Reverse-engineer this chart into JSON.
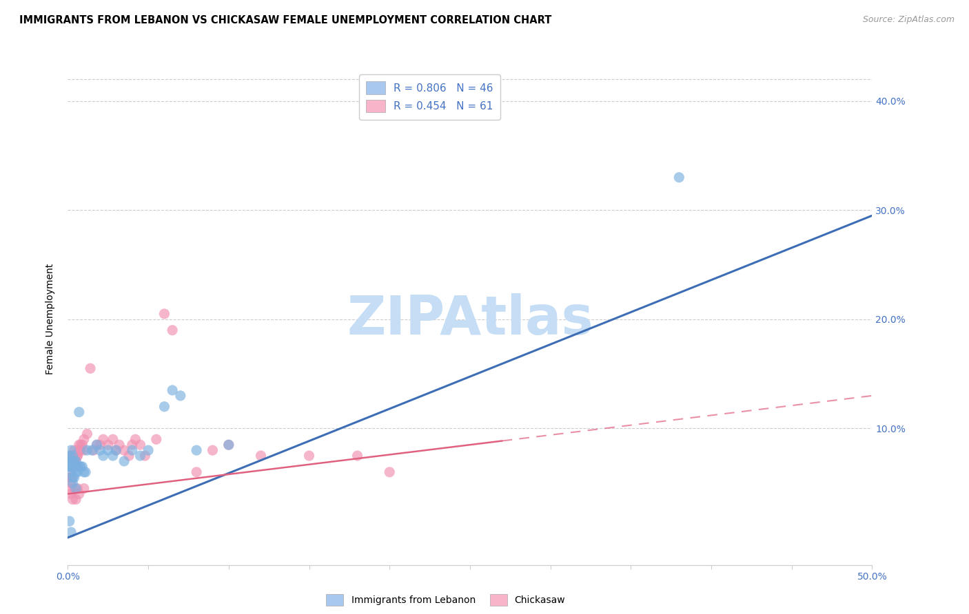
{
  "title": "IMMIGRANTS FROM LEBANON VS CHICKASAW FEMALE UNEMPLOYMENT CORRELATION CHART",
  "source": "Source: ZipAtlas.com",
  "ylabel": "Female Unemployment",
  "xlim": [
    0.0,
    0.5
  ],
  "ylim": [
    -0.025,
    0.425
  ],
  "title_fontsize": 10.5,
  "source_fontsize": 9,
  "legend_R1": "R = 0.806",
  "legend_N1": "N = 46",
  "legend_R2": "R = 0.454",
  "legend_N2": "N = 61",
  "legend_color1": "#a8c8f0",
  "legend_color2": "#f8b4c8",
  "dot_color1": "#7ab0e0",
  "dot_color2": "#f090b0",
  "line_color1": "#3d6db5",
  "line_color2": "#e06080",
  "axis_color": "#4472c4",
  "watermark": "ZIPAtlas",
  "watermark_color": "#c5ddf5",
  "blue_scatter_x": [
    0.001,
    0.001,
    0.001,
    0.002,
    0.002,
    0.002,
    0.002,
    0.003,
    0.003,
    0.003,
    0.003,
    0.003,
    0.004,
    0.004,
    0.004,
    0.005,
    0.005,
    0.005,
    0.006,
    0.006,
    0.007,
    0.007,
    0.008,
    0.009,
    0.01,
    0.011,
    0.012,
    0.015,
    0.018,
    0.02,
    0.022,
    0.025,
    0.028,
    0.03,
    0.035,
    0.04,
    0.045,
    0.05,
    0.06,
    0.065,
    0.07,
    0.08,
    0.1,
    0.38,
    0.001,
    0.002
  ],
  "blue_scatter_y": [
    0.075,
    0.07,
    0.065,
    0.08,
    0.07,
    0.065,
    0.06,
    0.075,
    0.065,
    0.07,
    0.055,
    0.05,
    0.07,
    0.065,
    0.055,
    0.07,
    0.06,
    0.045,
    0.065,
    0.06,
    0.115,
    0.065,
    0.065,
    0.065,
    0.06,
    0.06,
    0.08,
    0.08,
    0.085,
    0.08,
    0.075,
    0.08,
    0.075,
    0.08,
    0.07,
    0.08,
    0.075,
    0.08,
    0.12,
    0.135,
    0.13,
    0.08,
    0.085,
    0.33,
    0.015,
    0.005
  ],
  "blue_line_x": [
    0.0,
    0.5
  ],
  "blue_line_y": [
    0.0,
    0.295
  ],
  "pink_scatter_x": [
    0.001,
    0.001,
    0.001,
    0.002,
    0.002,
    0.002,
    0.002,
    0.002,
    0.003,
    0.003,
    0.003,
    0.003,
    0.004,
    0.004,
    0.004,
    0.005,
    0.005,
    0.005,
    0.006,
    0.006,
    0.006,
    0.007,
    0.007,
    0.008,
    0.008,
    0.009,
    0.01,
    0.01,
    0.012,
    0.014,
    0.016,
    0.018,
    0.02,
    0.022,
    0.025,
    0.028,
    0.03,
    0.032,
    0.035,
    0.038,
    0.04,
    0.042,
    0.045,
    0.048,
    0.055,
    0.06,
    0.065,
    0.08,
    0.09,
    0.1,
    0.12,
    0.15,
    0.18,
    0.2,
    0.002,
    0.003,
    0.004,
    0.005,
    0.006,
    0.007,
    0.01
  ],
  "pink_scatter_y": [
    0.055,
    0.065,
    0.045,
    0.065,
    0.07,
    0.075,
    0.055,
    0.05,
    0.075,
    0.065,
    0.055,
    0.07,
    0.065,
    0.08,
    0.07,
    0.07,
    0.065,
    0.075,
    0.075,
    0.065,
    0.075,
    0.08,
    0.085,
    0.08,
    0.085,
    0.085,
    0.09,
    0.08,
    0.095,
    0.155,
    0.08,
    0.085,
    0.085,
    0.09,
    0.085,
    0.09,
    0.08,
    0.085,
    0.08,
    0.075,
    0.085,
    0.09,
    0.085,
    0.075,
    0.09,
    0.205,
    0.19,
    0.06,
    0.08,
    0.085,
    0.075,
    0.075,
    0.075,
    0.06,
    0.04,
    0.035,
    0.045,
    0.035,
    0.045,
    0.04,
    0.045
  ],
  "pink_line_x": [
    0.0,
    0.5
  ],
  "pink_line_y": [
    0.04,
    0.13
  ],
  "dot_size": 120
}
